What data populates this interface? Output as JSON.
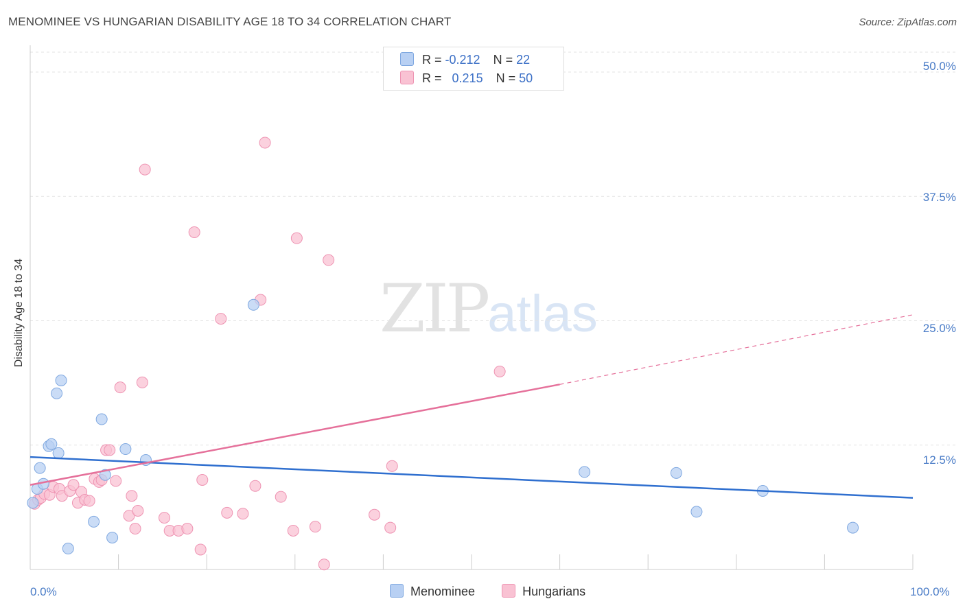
{
  "title": "MENOMINEE VS HUNGARIAN DISABILITY AGE 18 TO 34 CORRELATION CHART",
  "source": "Source: ZipAtlas.com",
  "watermark": {
    "zip": "ZIP",
    "atlas": "atlas"
  },
  "legend_top": {
    "rows": [
      {
        "r_label": "R =",
        "r_value": "-0.212",
        "n_label": "N =",
        "n_value": "22"
      },
      {
        "r_label": "R =",
        "r_value": "0.215",
        "n_label": "N =",
        "n_value": "50"
      }
    ]
  },
  "legend_bottom": {
    "items": [
      "Menominee",
      "Hungarians"
    ]
  },
  "colors": {
    "menominee_fill": "#b8d0f3",
    "menominee_stroke": "#7fa8e0",
    "menominee_line": "#2f6fcf",
    "hungarians_fill": "#f9c2d3",
    "hungarians_stroke": "#ee93b2",
    "hungarians_line": "#e5709a",
    "tick_label": "#4a7cc7",
    "grid": "#e3e3e3"
  },
  "chart_data": {
    "type": "scatter",
    "title": "MENOMINEE VS HUNGARIAN DISABILITY AGE 18 TO 34 CORRELATION CHART",
    "xlabel": "",
    "ylabel": "Disability Age 18 to 34",
    "xlim": [
      0,
      100
    ],
    "ylim": [
      0,
      52
    ],
    "x_tick_labels": [
      "0.0%",
      "100.0%"
    ],
    "y_ticks": [
      12.5,
      25.0,
      37.5,
      50.0
    ],
    "y_tick_labels": [
      "12.5%",
      "25.0%",
      "37.5%",
      "50.0%"
    ],
    "grid": true,
    "legend_position": "top-center",
    "series": [
      {
        "name": "Menominee",
        "R": -0.212,
        "N": 22,
        "trend": {
          "x": [
            0,
            100
          ],
          "y": [
            11.3,
            7.2
          ]
        },
        "points": [
          [
            0.3,
            6.7
          ],
          [
            0.8,
            8.1
          ],
          [
            1.1,
            10.2
          ],
          [
            1.5,
            8.6
          ],
          [
            2.1,
            12.4
          ],
          [
            2.4,
            12.6
          ],
          [
            3.0,
            17.7
          ],
          [
            3.2,
            11.7
          ],
          [
            3.5,
            19.0
          ],
          [
            4.3,
            2.1
          ],
          [
            7.2,
            4.8
          ],
          [
            8.1,
            15.1
          ],
          [
            8.5,
            9.5
          ],
          [
            9.3,
            3.2
          ],
          [
            10.8,
            12.1
          ],
          [
            13.1,
            11.0
          ],
          [
            25.3,
            26.6
          ],
          [
            62.8,
            9.8
          ],
          [
            73.2,
            9.7
          ],
          [
            75.5,
            5.8
          ],
          [
            83.0,
            7.9
          ],
          [
            93.2,
            4.2
          ]
        ]
      },
      {
        "name": "Hungarians",
        "R": 0.215,
        "N": 50,
        "trend": {
          "x": [
            0,
            60
          ],
          "y": [
            8.5,
            18.6
          ],
          "dashed_extension": {
            "x": [
              60,
              100
            ],
            "y": [
              18.6,
              25.6
            ]
          }
        },
        "points": [
          [
            0.5,
            6.6
          ],
          [
            0.9,
            7.0
          ],
          [
            1.2,
            7.2
          ],
          [
            1.6,
            7.6
          ],
          [
            2.2,
            7.5
          ],
          [
            2.6,
            8.3
          ],
          [
            3.3,
            8.1
          ],
          [
            3.6,
            7.4
          ],
          [
            4.5,
            7.9
          ],
          [
            4.9,
            8.5
          ],
          [
            5.4,
            6.7
          ],
          [
            5.8,
            7.8
          ],
          [
            6.2,
            7.0
          ],
          [
            6.7,
            6.9
          ],
          [
            7.3,
            9.1
          ],
          [
            7.8,
            8.8
          ],
          [
            8.1,
            9.0
          ],
          [
            8.6,
            12.0
          ],
          [
            9.0,
            12.0
          ],
          [
            9.7,
            8.9
          ],
          [
            10.2,
            18.3
          ],
          [
            11.2,
            5.4
          ],
          [
            11.5,
            7.4
          ],
          [
            11.9,
            4.1
          ],
          [
            12.2,
            5.9
          ],
          [
            12.7,
            18.8
          ],
          [
            13.0,
            40.2
          ],
          [
            15.2,
            5.2
          ],
          [
            15.8,
            3.9
          ],
          [
            16.8,
            3.9
          ],
          [
            17.8,
            4.1
          ],
          [
            18.6,
            33.9
          ],
          [
            19.3,
            2.0
          ],
          [
            19.5,
            9.0
          ],
          [
            21.6,
            25.2
          ],
          [
            22.3,
            5.7
          ],
          [
            24.1,
            5.6
          ],
          [
            25.5,
            8.4
          ],
          [
            26.1,
            27.1
          ],
          [
            26.6,
            42.9
          ],
          [
            28.4,
            7.3
          ],
          [
            29.8,
            3.9
          ],
          [
            30.2,
            33.3
          ],
          [
            32.3,
            4.3
          ],
          [
            33.3,
            0.5
          ],
          [
            33.8,
            31.1
          ],
          [
            39.0,
            5.5
          ],
          [
            40.8,
            4.2
          ],
          [
            41.0,
            10.4
          ],
          [
            53.2,
            19.9
          ]
        ]
      }
    ]
  }
}
